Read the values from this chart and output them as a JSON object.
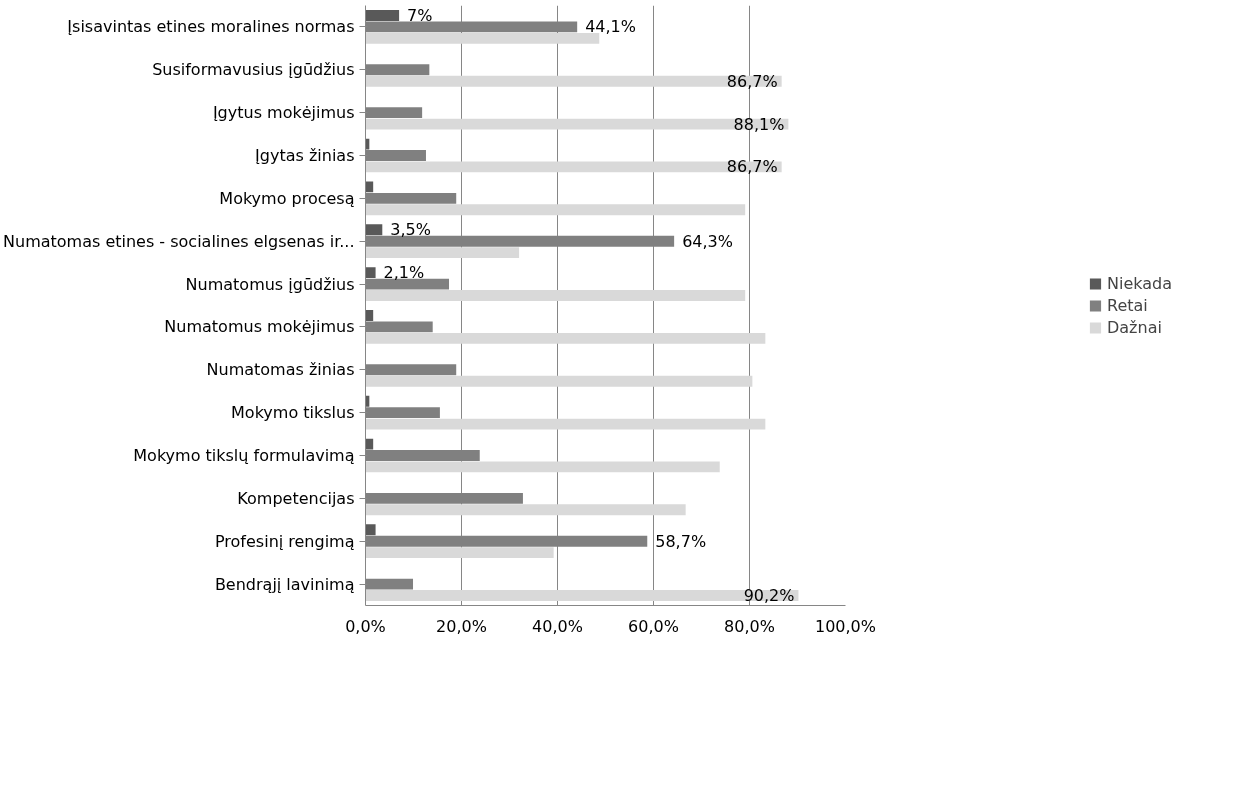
{
  "chart_data": {
    "type": "bar",
    "orientation": "horizontal",
    "categories": [
      "Įsisavintas etines moralines normas",
      "Susiformavusius įgūdžius",
      "Įgytus mokėjimus",
      "Įgytas žinias",
      "Mokymo procesą",
      "Numatomas etines - socialines elgsenas ir...",
      "Numatomus įgūdžius",
      "Numatomus mokėjimus",
      "Numatomas žinias",
      "Mokymo tikslus",
      "Mokymo tikslų formulavimą",
      "Kompetencijas",
      "Profesinį rengimą",
      "Bendrąjį lavinimą"
    ],
    "series": [
      {
        "name": "Niekada",
        "color": "#595959",
        "values": [
          7,
          0,
          0,
          0.8,
          1.6,
          3.5,
          2.1,
          1.6,
          0,
          0.8,
          1.6,
          0,
          2.1,
          0
        ],
        "value_labels": [
          "7%",
          null,
          null,
          null,
          null,
          "3,5%",
          "2,1%",
          null,
          null,
          null,
          null,
          null,
          null,
          null
        ]
      },
      {
        "name": "Retai",
        "color": "#808080",
        "values": [
          44.1,
          13.3,
          11.8,
          12.6,
          18.9,
          64.3,
          17.4,
          14.0,
          18.9,
          15.5,
          23.8,
          32.8,
          58.7,
          9.9
        ],
        "value_labels": [
          "44,1%",
          null,
          null,
          null,
          null,
          "64,3%",
          null,
          null,
          null,
          null,
          null,
          null,
          "58,7%",
          null
        ]
      },
      {
        "name": "Dažnai",
        "color": "#d9d9d9",
        "values": [
          48.7,
          86.7,
          88.1,
          86.7,
          79.1,
          32.0,
          79.1,
          83.3,
          80.6,
          83.3,
          73.8,
          66.7,
          39.2,
          90.2
        ],
        "value_labels": [
          null,
          "86,7%",
          "88,1%",
          "86,7%",
          null,
          null,
          null,
          null,
          null,
          null,
          null,
          null,
          null,
          "90,2%"
        ]
      }
    ],
    "xlim": [
      0,
      100
    ],
    "xticks": [
      {
        "value": 0,
        "label": "0,0%"
      },
      {
        "value": 20,
        "label": "20,0%"
      },
      {
        "value": 40,
        "label": "40,0%"
      },
      {
        "value": 60,
        "label": "60,0%"
      },
      {
        "value": 80,
        "label": "80,0%"
      },
      {
        "value": 100,
        "label": "100,0%"
      }
    ],
    "grid": "x",
    "legend": "right"
  }
}
